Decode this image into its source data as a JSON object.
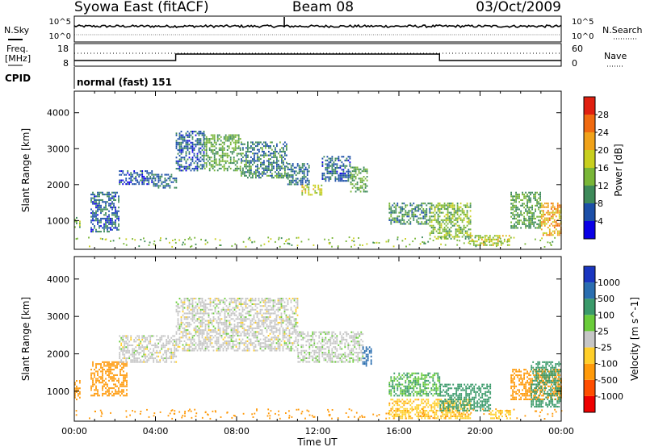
{
  "header": {
    "station": "Syowa East (fitACF)",
    "beam": "Beam 08",
    "date": "03/Oct/2009"
  },
  "noise_panel": {
    "left_label": "N.Sky",
    "right_label": "N.Search",
    "left_ticks": [
      "10^5",
      "10^0"
    ],
    "right_ticks": [
      "10^5",
      "10^0"
    ]
  },
  "freq_panel": {
    "left_label_line1": "Freq.",
    "left_label_line2": "[MHz]",
    "right_label": "Nave",
    "left_ticks": [
      "18",
      "8"
    ],
    "right_ticks": [
      "60",
      "0"
    ]
  },
  "cpid": {
    "label": "CPID",
    "mode_text": "normal (fast) 151"
  },
  "colors": {
    "power_scale": [
      "#0a00e6",
      "#1c4fa8",
      "#3e8a5a",
      "#79b638",
      "#c8cf1f",
      "#f0a21a",
      "#f06a10",
      "#e02010"
    ],
    "velocity_scale": [
      "#ee0000",
      "#ff4e00",
      "#ff9a0a",
      "#ffcf2a",
      "#c6c6c6",
      "#6acc3a",
      "#3a9a6a",
      "#2a6eb0",
      "#1a36c0"
    ]
  },
  "chart_data": [
    {
      "type": "heatmap",
      "name": "power",
      "xlabel": "Time UT",
      "ylabel": "Slant Range [km]",
      "xlim": [
        0,
        24
      ],
      "ylim": [
        200,
        4600
      ],
      "y_ticks": [
        "1000",
        "2000",
        "3000",
        "4000"
      ],
      "colorbar": {
        "label": "Power [dB]",
        "ticks": [
          "28",
          "24",
          "20",
          "16",
          "12",
          "8",
          "4"
        ],
        "range": [
          0,
          32
        ]
      },
      "regions": [
        {
          "t": [
            0.0,
            0.25
          ],
          "r": [
            800,
            1100
          ],
          "v": 14
        },
        {
          "t": [
            0.8,
            2.2
          ],
          "r": [
            700,
            1800
          ],
          "v": 7
        },
        {
          "t": [
            2.2,
            3.8
          ],
          "r": [
            2000,
            2400
          ],
          "v": 6
        },
        {
          "t": [
            3.8,
            5.0
          ],
          "r": [
            1900,
            2300
          ],
          "v": 8
        },
        {
          "t": [
            5.0,
            6.4
          ],
          "r": [
            2400,
            3500
          ],
          "v": 7
        },
        {
          "t": [
            6.4,
            8.2
          ],
          "r": [
            2400,
            3400
          ],
          "v": 12
        },
        {
          "t": [
            8.2,
            10.5
          ],
          "r": [
            2200,
            3200
          ],
          "v": 9
        },
        {
          "t": [
            10.5,
            11.6
          ],
          "r": [
            2000,
            2600
          ],
          "v": 8
        },
        {
          "t": [
            11.2,
            12.2
          ],
          "r": [
            1700,
            2000
          ],
          "v": 18
        },
        {
          "t": [
            12.2,
            13.6
          ],
          "r": [
            2100,
            2800
          ],
          "v": 7
        },
        {
          "t": [
            13.6,
            14.4
          ],
          "r": [
            1800,
            2500
          ],
          "v": 12
        },
        {
          "t": [
            15.5,
            17.5
          ],
          "r": [
            900,
            1500
          ],
          "v": 10
        },
        {
          "t": [
            17.5,
            19.5
          ],
          "r": [
            500,
            1500
          ],
          "v": 14
        },
        {
          "t": [
            19.5,
            21.5
          ],
          "r": [
            300,
            600
          ],
          "v": 17
        },
        {
          "t": [
            21.5,
            23.0
          ],
          "r": [
            800,
            1800
          ],
          "v": 12
        },
        {
          "t": [
            23.0,
            24.0
          ],
          "r": [
            600,
            1500
          ],
          "v": 22
        }
      ]
    },
    {
      "type": "heatmap",
      "name": "velocity",
      "xlabel": "Time UT",
      "ylabel": "Slant Range [km]",
      "xlim": [
        0,
        24
      ],
      "ylim": [
        200,
        4600
      ],
      "x_ticks": [
        "00:00",
        "04:00",
        "08:00",
        "12:00",
        "16:00",
        "20:00",
        "00:00"
      ],
      "y_ticks": [
        "1000",
        "2000",
        "3000",
        "4000"
      ],
      "colorbar": {
        "label": "Velocity [m s^-1]",
        "ticks": [
          "1000",
          "500",
          "100",
          "25",
          "-25",
          "-100",
          "-500",
          "-1000"
        ]
      },
      "regions": [
        {
          "t": [
            0.0,
            0.25
          ],
          "r": [
            800,
            1300
          ],
          "v": -300
        },
        {
          "t": [
            0.8,
            2.6
          ],
          "r": [
            900,
            1800
          ],
          "v": -400
        },
        {
          "t": [
            2.2,
            5.0
          ],
          "r": [
            1800,
            2500
          ],
          "v": 0
        },
        {
          "t": [
            5.0,
            11.0
          ],
          "r": [
            2100,
            3500
          ],
          "v": 0
        },
        {
          "t": [
            11.0,
            14.2
          ],
          "r": [
            1800,
            2600
          ],
          "v": 5
        },
        {
          "t": [
            14.2,
            14.6
          ],
          "r": [
            1700,
            2200
          ],
          "v": 600
        },
        {
          "t": [
            15.5,
            18.0
          ],
          "r": [
            900,
            1500
          ],
          "v": 100
        },
        {
          "t": [
            15.5,
            19.5
          ],
          "r": [
            300,
            800
          ],
          "v": -80
        },
        {
          "t": [
            18.0,
            20.5
          ],
          "r": [
            500,
            1200
          ],
          "v": 200
        },
        {
          "t": [
            20.5,
            21.5
          ],
          "r": [
            300,
            500
          ],
          "v": -60
        },
        {
          "t": [
            21.5,
            24.0
          ],
          "r": [
            800,
            1600
          ],
          "v": -200
        },
        {
          "t": [
            22.5,
            24.0
          ],
          "r": [
            600,
            1800
          ],
          "v": 300
        }
      ]
    }
  ]
}
